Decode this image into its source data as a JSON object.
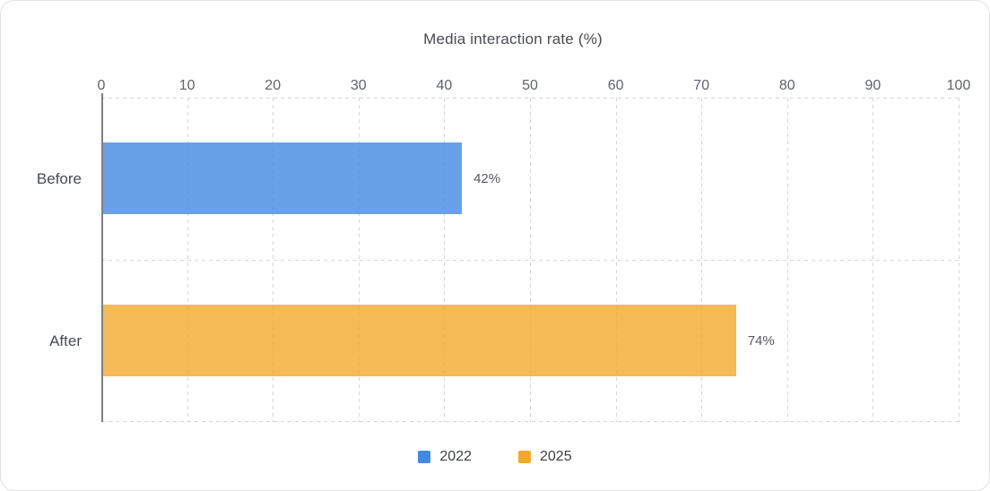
{
  "chart_data": {
    "type": "bar",
    "orientation": "horizontal",
    "title": "Media interaction rate (%)",
    "categories": [
      "Before",
      "After"
    ],
    "series": [
      {
        "name": "2022",
        "color": "#4389E3",
        "values": [
          42,
          null
        ]
      },
      {
        "name": "2025",
        "color": "#F3A82A",
        "values": [
          null,
          74
        ]
      }
    ],
    "bars": [
      {
        "category": "Before",
        "series": "2022",
        "value": 42,
        "label": "42%",
        "color": "#4389E3"
      },
      {
        "category": "After",
        "series": "2025",
        "value": 74,
        "label": "74%",
        "color": "#F3A82A"
      }
    ],
    "xticks": [
      0,
      10,
      20,
      30,
      40,
      50,
      60,
      70,
      80,
      90,
      100
    ],
    "xlim": [
      0,
      100
    ],
    "grid": "dashed",
    "bar_opacity": 0.8,
    "legend_position": "bottom",
    "legend": [
      "2022",
      "2025"
    ]
  }
}
